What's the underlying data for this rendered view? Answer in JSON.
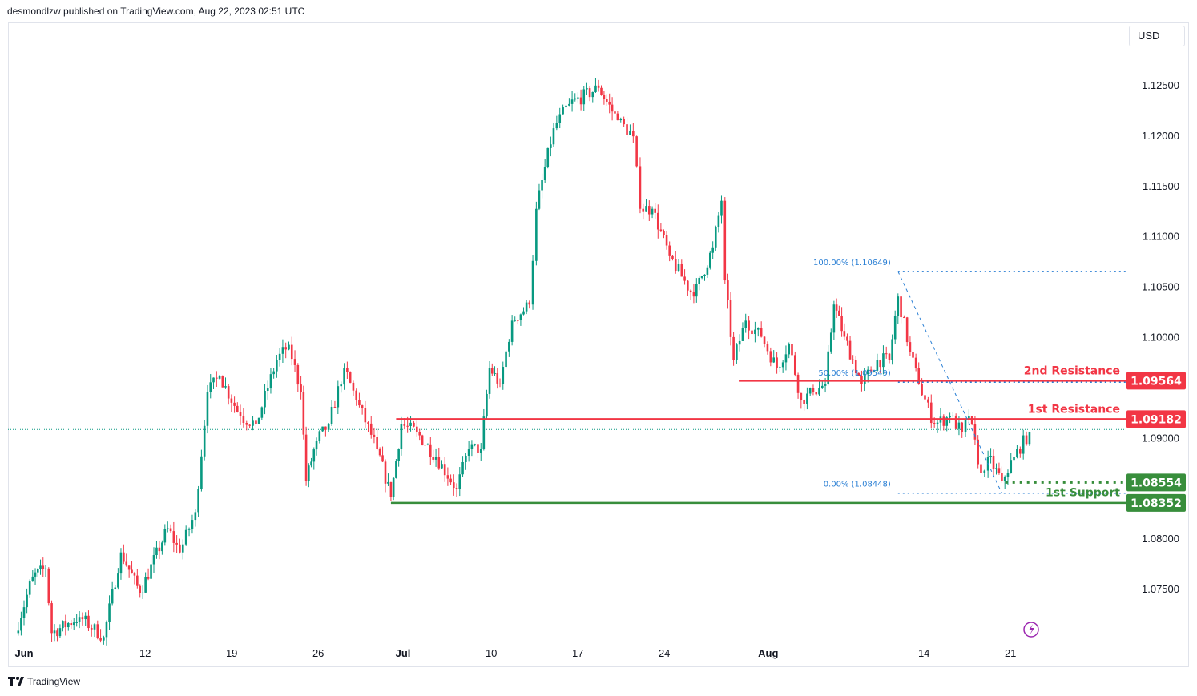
{
  "header": {
    "published": "desmondlzw published on TradingView.com, Aug 22, 2023 02:51 UTC"
  },
  "currency": "USD",
  "footer": {
    "brand": "TradingView"
  },
  "colors": {
    "up": "#089981",
    "down": "#f23645",
    "resistance": "#f23645",
    "support": "#388e3c",
    "fib": "#2a7fd4",
    "last": "#089981"
  },
  "chart_data": {
    "type": "candlestick",
    "symbol_note": "4-hour candles, time in trading days from Jun 1",
    "ylim": [
      1.0695,
      1.1275
    ],
    "yticks": [
      "1.12500",
      "1.12000",
      "1.11500",
      "1.11000",
      "1.10500",
      "1.10000",
      "1.09000",
      "1.08000",
      "1.07500"
    ],
    "xticks": [
      {
        "t": 0,
        "label": "Jun"
      },
      {
        "t": 7,
        "label": "12"
      },
      {
        "t": 12,
        "label": "19"
      },
      {
        "t": 17,
        "label": "26"
      },
      {
        "t": 21.9,
        "label": "Jul"
      },
      {
        "t": 27,
        "label": "10"
      },
      {
        "t": 32,
        "label": "17"
      },
      {
        "t": 37,
        "label": "24"
      },
      {
        "t": 43,
        "label": "Aug"
      },
      {
        "t": 52,
        "label": "14"
      },
      {
        "t": 57,
        "label": "21"
      }
    ],
    "price_path": [
      [
        -0.5,
        1.0706
      ],
      [
        0.5,
        1.0762
      ],
      [
        1.25,
        1.077
      ],
      [
        1.6,
        1.0706
      ],
      [
        3.2,
        1.0722
      ],
      [
        4.6,
        1.0702
      ],
      [
        5.6,
        1.0786
      ],
      [
        6.7,
        1.0746
      ],
      [
        8.3,
        1.081
      ],
      [
        9,
        1.0786
      ],
      [
        9.9,
        1.0826
      ],
      [
        10.6,
        1.0945
      ],
      [
        11.3,
        1.0961
      ],
      [
        12.5,
        1.0921
      ],
      [
        13.4,
        1.0913
      ],
      [
        14.6,
        1.0977
      ],
      [
        15.3,
        1.0992
      ],
      [
        16,
        1.0945
      ],
      [
        16.3,
        1.0857
      ],
      [
        16.9,
        1.0897
      ],
      [
        17.6,
        1.0913
      ],
      [
        18.5,
        1.0969
      ],
      [
        19.2,
        1.0937
      ],
      [
        20.4,
        1.0889
      ],
      [
        21.2,
        1.0841
      ],
      [
        21.8,
        1.0913
      ],
      [
        22.7,
        1.0905
      ],
      [
        23.8,
        1.0881
      ],
      [
        25,
        1.0849
      ],
      [
        25.7,
        1.0889
      ],
      [
        26.4,
        1.0889
      ],
      [
        26.9,
        1.0969
      ],
      [
        27.5,
        1.0953
      ],
      [
        28.2,
        1.1016
      ],
      [
        29.2,
        1.1032
      ],
      [
        29.6,
        1.1127
      ],
      [
        30.6,
        1.1207
      ],
      [
        31.5,
        1.1231
      ],
      [
        33.2,
        1.1247
      ],
      [
        34.3,
        1.1215
      ],
      [
        35.2,
        1.1199
      ],
      [
        35.6,
        1.1127
      ],
      [
        36.3,
        1.1127
      ],
      [
        37.3,
        1.108
      ],
      [
        38.7,
        1.104
      ],
      [
        39.8,
        1.1088
      ],
      [
        40.3,
        1.1135
      ],
      [
        40.5,
        1.1056
      ],
      [
        41,
        1.0977
      ],
      [
        41.7,
        1.1016
      ],
      [
        42.6,
        1.1
      ],
      [
        43.5,
        1.0969
      ],
      [
        44.2,
        1.0993
      ],
      [
        44.9,
        1.0937
      ],
      [
        45.6,
        1.0945
      ],
      [
        46.3,
        1.0953
      ],
      [
        46.8,
        1.1032
      ],
      [
        47.4,
        1.1
      ],
      [
        48.4,
        1.0953
      ],
      [
        49.3,
        1.0977
      ],
      [
        50,
        1.0977
      ],
      [
        50.5,
        1.104
      ],
      [
        51.2,
        1.0985
      ],
      [
        51.7,
        1.0953
      ],
      [
        52.6,
        1.0913
      ],
      [
        53.5,
        1.0921
      ],
      [
        54.2,
        1.0905
      ],
      [
        54.6,
        1.0921
      ],
      [
        55.3,
        1.0865
      ],
      [
        55.7,
        1.0881
      ],
      [
        56.5,
        1.0857
      ],
      [
        57.2,
        1.0881
      ],
      [
        58.1,
        1.0905
      ]
    ],
    "last_price": 1.0908,
    "levels": [
      {
        "name": "2nd Resistance",
        "price": 1.09564,
        "value_label": "1.09564",
        "kind": "resistance",
        "from_t": 41.3
      },
      {
        "name": "1st Resistance",
        "price": 1.09182,
        "value_label": "1.09182",
        "kind": "resistance",
        "from_t": 21.5
      },
      {
        "name": "1st Support",
        "price": 1.08554,
        "value_label": "1.08554",
        "kind": "support-dotted",
        "from_t": 56.7
      },
      {
        "name": "",
        "price": 1.08352,
        "value_label": "1.08352",
        "kind": "support",
        "from_t": 21.2
      }
    ],
    "fibonacci": {
      "start": {
        "t": 50.5,
        "price": 1.10649
      },
      "end": {
        "t": 56.5,
        "price": 1.08448
      },
      "levels": [
        {
          "label": "100.00% (1.10649)",
          "price": 1.10649
        },
        {
          "label": "50.00% (1.09549)",
          "price": 1.09549
        },
        {
          "label": "0.00% (1.08448)",
          "price": 1.08448
        }
      ]
    }
  }
}
